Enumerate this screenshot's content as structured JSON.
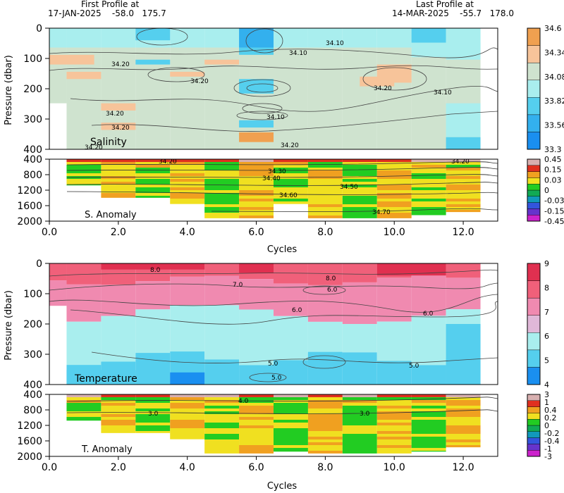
{
  "header": {
    "first_title": "First Profile at",
    "first_value": "17-JAN-2025    -58.0   175.7",
    "last_title": "Last Profile at",
    "last_value": "14-MAR-2025    -55.7   178.0"
  },
  "colors": {
    "salinity": [
      "#1a8ff0",
      "#33b0ee",
      "#55cfee",
      "#a9eeee",
      "#cfe3cf",
      "#f7c49a",
      "#f0a050"
    ],
    "anomaly": [
      "#cc22cc",
      "#6633cc",
      "#3355dd",
      "#1199bb",
      "#11aa55",
      "#22cc22",
      "#f0e020",
      "#f0a020",
      "#e03020",
      "#d8b0b0"
    ],
    "temperature": [
      "#1a8ff0",
      "#55cfee",
      "#a9eeee",
      "#e0b8d8",
      "#f08ab0",
      "#f0607a",
      "#e03050"
    ]
  },
  "chart_data": [
    {
      "id": "salinity",
      "type": "heatmap",
      "title": "Salinity",
      "ylabel": "Pressure (dbar)",
      "xlim": [
        0,
        13
      ],
      "ylim": [
        400,
        0
      ],
      "yticks": [
        "0",
        "100",
        "200",
        "300",
        "400"
      ],
      "colorbar": [
        "34.6",
        "34.34",
        "34.08",
        "33.82",
        "33.56",
        "33.3"
      ],
      "contour_labels": [
        "34.10",
        "34.10",
        "34.20",
        "34.20",
        "34.20",
        "34.10",
        "34.20",
        "34.20",
        "34.10",
        "34.20",
        "34.20"
      ]
    },
    {
      "id": "s-anomaly",
      "type": "heatmap",
      "title": "S. Anomaly",
      "xlabel": "Cycles",
      "xlim": [
        0,
        13
      ],
      "ylim": [
        2000,
        400
      ],
      "xticks": [
        "0.0",
        "2.0",
        "4.0",
        "6.0",
        "8.0",
        "10.0",
        "12.0"
      ],
      "yticks": [
        "400",
        "800",
        "1200",
        "1600",
        "2000"
      ],
      "colorbar": [
        "0.45",
        "0.15",
        "0.03",
        "0",
        "-0.03",
        "-0.15",
        "-0.45"
      ],
      "contour_labels": [
        "34.20",
        "34.30",
        "34.40",
        "34.50",
        "34.60",
        "34.70",
        "34.20"
      ]
    },
    {
      "id": "temperature",
      "type": "heatmap",
      "title": "Temperature",
      "ylabel": "Pressure (dbar)",
      "xlim": [
        0,
        13
      ],
      "ylim": [
        400,
        0
      ],
      "yticks": [
        "0",
        "100",
        "200",
        "300",
        "400"
      ],
      "colorbar": [
        "9",
        "8",
        "7",
        "6",
        "5",
        "4"
      ],
      "contour_labels": [
        "8.0",
        "8.0",
        "7.0",
        "6.0",
        "6.0",
        "6.0",
        "5.0",
        "5.0",
        "5.0"
      ]
    },
    {
      "id": "t-anomaly",
      "type": "heatmap",
      "title": "T. Anomaly",
      "xlabel": "Cycles",
      "xlim": [
        0,
        13
      ],
      "ylim": [
        2000,
        400
      ],
      "xticks": [
        "0.0",
        "2.0",
        "4.0",
        "6.0",
        "8.0",
        "10.0",
        "12.0"
      ],
      "yticks": [
        "400",
        "800",
        "1200",
        "1600",
        "2000"
      ],
      "colorbar": [
        "3",
        "1",
        "0.4",
        "0.2",
        "0",
        "-0.2",
        "-0.4",
        "-1",
        "-3"
      ],
      "contour_labels": [
        "4.0",
        "3.0",
        "3.0"
      ]
    }
  ]
}
